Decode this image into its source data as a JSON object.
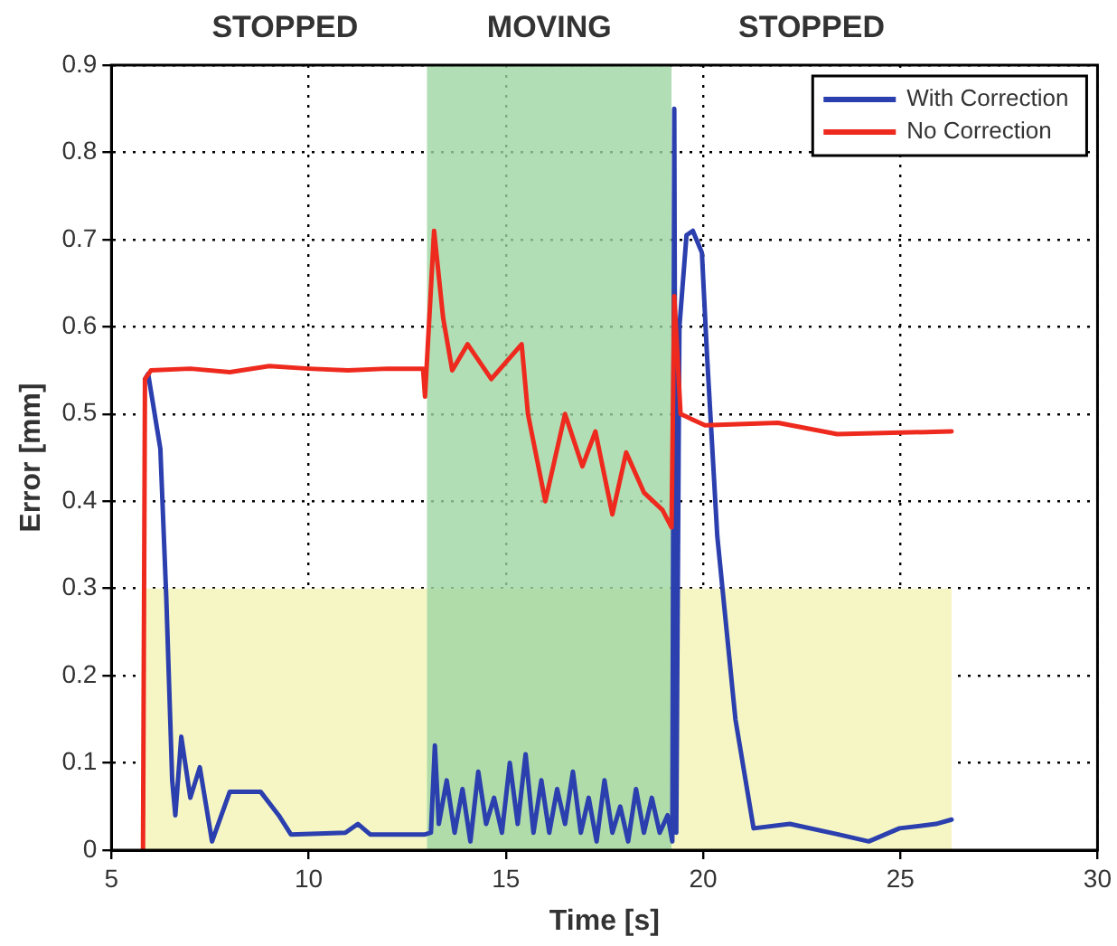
{
  "chart_data": {
    "type": "line",
    "xlabel": "Time [s]",
    "ylabel": "Error [mm]",
    "xlim": [
      5,
      30
    ],
    "xticks": [
      5,
      10,
      15,
      20,
      25,
      30
    ],
    "ylim": [
      0,
      0.9
    ],
    "yticks": [
      0,
      0.1,
      0.2,
      0.3,
      0.4,
      0.5,
      0.6,
      0.7,
      0.8,
      0.9
    ],
    "grid": true,
    "legend": "top right",
    "line_style": "solid",
    "marker": "none",
    "annotations": [
      "STOPPED",
      "STOPPED"
    ],
    "bands": [
      {
        "axis": "y",
        "from": 0,
        "to": 0.3,
        "color": "#f6f6c4"
      },
      {
        "axis": "x",
        "from": 13,
        "to": 19.2,
        "color": "#9fd6a4",
        "label": "MOVING"
      }
    ],
    "series": [
      {
        "name": "With Correction",
        "color": "#2b3fae",
        "x": [
          5.85,
          5.93,
          6.24,
          6.39,
          6.54,
          6.62,
          6.77,
          7.0,
          7.24,
          7.55,
          8.0,
          8.78,
          9.24,
          9.55,
          10.93,
          11.25,
          11.56,
          12.95,
          13.1,
          13.2,
          13.3,
          13.5,
          13.7,
          13.9,
          14.1,
          14.3,
          14.5,
          14.7,
          14.9,
          15.1,
          15.3,
          15.5,
          15.7,
          15.9,
          16.1,
          16.3,
          16.5,
          16.7,
          16.9,
          17.1,
          17.3,
          17.5,
          17.7,
          17.9,
          18.1,
          18.3,
          18.5,
          18.7,
          18.9,
          19.1,
          19.22,
          19.27,
          19.32,
          19.4,
          19.58,
          19.74,
          19.97,
          20.1,
          20.36,
          20.82,
          21.28,
          22.2,
          23.43,
          24.2,
          24.98,
          25.9,
          26.3
        ],
        "values": [
          0.54,
          0.546,
          0.46,
          0.29,
          0.08,
          0.04,
          0.13,
          0.06,
          0.095,
          0.01,
          0.067,
          0.067,
          0.04,
          0.018,
          0.02,
          0.03,
          0.018,
          0.018,
          0.02,
          0.12,
          0.03,
          0.08,
          0.02,
          0.07,
          0.01,
          0.09,
          0.03,
          0.06,
          0.02,
          0.1,
          0.03,
          0.11,
          0.02,
          0.08,
          0.02,
          0.07,
          0.03,
          0.09,
          0.02,
          0.06,
          0.01,
          0.08,
          0.02,
          0.05,
          0.01,
          0.07,
          0.02,
          0.06,
          0.02,
          0.04,
          0.01,
          0.85,
          0.02,
          0.6,
          0.705,
          0.71,
          0.685,
          0.567,
          0.36,
          0.15,
          0.025,
          0.03,
          0.018,
          0.01,
          0.025,
          0.03,
          0.035
        ]
      },
      {
        "name": "No Correction",
        "color": "#ee2a1e",
        "x": [
          5.8,
          5.85,
          6.0,
          7.0,
          8.0,
          9.0,
          10.0,
          11.0,
          12.0,
          12.9,
          12.95,
          13.18,
          13.41,
          13.64,
          14.03,
          14.63,
          15.4,
          15.56,
          16.0,
          16.5,
          16.94,
          17.27,
          17.7,
          18.05,
          18.5,
          18.97,
          19.2,
          19.27,
          19.43,
          20.05,
          21.9,
          23.4,
          26.3
        ],
        "values": [
          0,
          0.54,
          0.55,
          0.552,
          0.548,
          0.555,
          0.552,
          0.55,
          0.552,
          0.552,
          0.52,
          0.71,
          0.61,
          0.55,
          0.58,
          0.54,
          0.58,
          0.5,
          0.4,
          0.5,
          0.44,
          0.48,
          0.385,
          0.456,
          0.41,
          0.39,
          0.37,
          0.635,
          0.5,
          0.487,
          0.49,
          0.477,
          0.48
        ]
      }
    ]
  }
}
